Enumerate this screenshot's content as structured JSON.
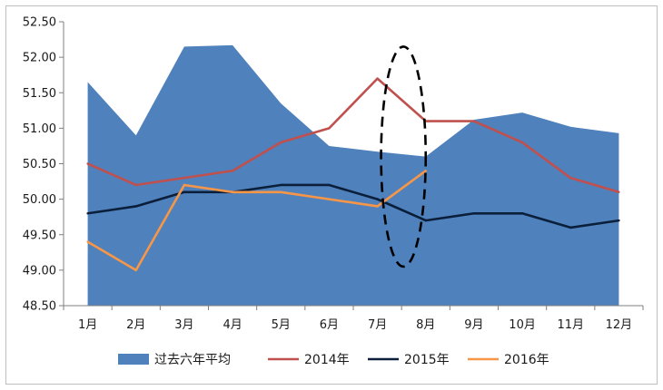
{
  "chart_data": {
    "type": "line",
    "categories": [
      "1月",
      "2月",
      "3月",
      "4月",
      "5月",
      "6月",
      "7月",
      "8月",
      "9月",
      "10月",
      "11月",
      "12月"
    ],
    "ylim": [
      48.5,
      52.5
    ],
    "ytick_step": 0.5,
    "ytick_labels": [
      "48.50",
      "49.00",
      "49.50",
      "50.00",
      "50.50",
      "51.00",
      "51.50",
      "52.00",
      "52.50"
    ],
    "grid": false,
    "legend_position": "bottom",
    "series": [
      {
        "name": "过去六年平均",
        "kind": "area",
        "color": "#4f81bd",
        "values": [
          51.65,
          50.9,
          52.15,
          52.17,
          51.35,
          50.75,
          50.67,
          50.6,
          51.12,
          51.22,
          51.02,
          50.93
        ]
      },
      {
        "name": "2014年",
        "kind": "line",
        "color": "#c0504d",
        "values": [
          50.5,
          50.2,
          50.3,
          50.4,
          50.8,
          51.0,
          51.7,
          51.1,
          51.1,
          50.8,
          50.3,
          50.1
        ]
      },
      {
        "name": "2015年",
        "kind": "line",
        "color": "#0b1f3a",
        "values": [
          49.8,
          49.9,
          50.1,
          50.1,
          50.2,
          50.2,
          50.0,
          49.7,
          49.8,
          49.8,
          49.6,
          49.7
        ]
      },
      {
        "name": "2016年",
        "kind": "line",
        "color": "#f79646",
        "values": [
          49.4,
          49.0,
          50.2,
          50.1,
          50.1,
          50.0,
          49.9,
          50.4,
          null,
          null,
          null,
          null
        ]
      }
    ],
    "annotation": {
      "shape": "dashed-ellipse",
      "category_range": [
        "7月",
        "8月"
      ],
      "y_range": [
        49.05,
        52.15
      ]
    }
  }
}
